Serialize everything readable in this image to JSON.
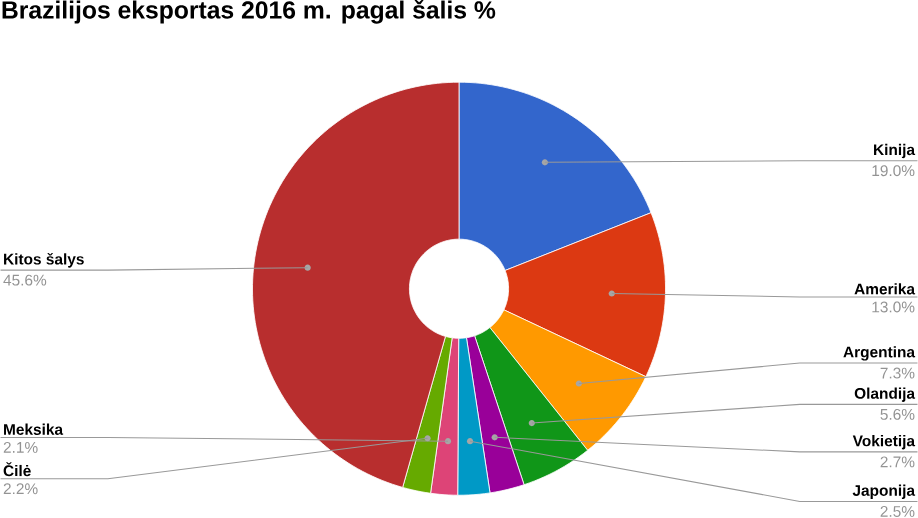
{
  "chart_data": {
    "type": "donut",
    "title": "Brazilijos eksportas 2016 m. pagal šalis %",
    "categories": [
      "Kinija",
      "Amerika",
      "Argentina",
      "Olandija",
      "Vokietija",
      "Japonija",
      "Meksika",
      "Čilė",
      "Kitos šalys"
    ],
    "values": [
      19.0,
      13.0,
      7.3,
      5.6,
      2.7,
      2.5,
      2.1,
      2.2,
      45.6
    ],
    "value_labels": [
      "19.0%",
      "13.0%",
      "7.3%",
      "5.6%",
      "2.7%",
      "2.5%",
      "2.1%",
      "2.2%",
      "45.6%"
    ],
    "colors": [
      "#3366cc",
      "#dc3912",
      "#ff9900",
      "#109618",
      "#990099",
      "#0099c6",
      "#dd4477",
      "#66aa00",
      "#b82e2e"
    ]
  }
}
